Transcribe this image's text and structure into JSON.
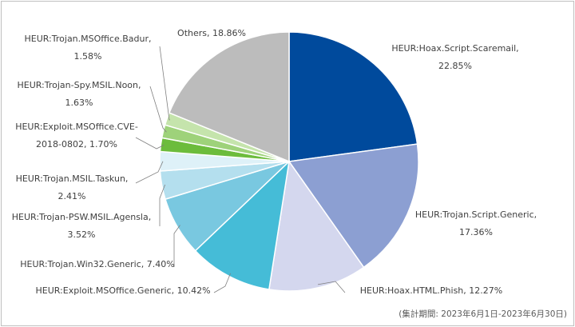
{
  "chart_data": {
    "type": "pie",
    "title": "",
    "slices": [
      {
        "name": "HEUR:Hoax.Script.Scaremail",
        "value": 22.85,
        "label_lines": [
          "HEUR:Hoax.Script.Scaremail,",
          "22.85%"
        ],
        "color": "#004a9c"
      },
      {
        "name": "HEUR:Trojan.Script.Generic",
        "value": 17.36,
        "label_lines": [
          "HEUR:Trojan.Script.Generic,",
          "17.36%"
        ],
        "color": "#8c9fd2"
      },
      {
        "name": "HEUR:Hoax.HTML.Phish",
        "value": 12.27,
        "label_lines": [
          "HEUR:Hoax.HTML.Phish, 12.27%"
        ],
        "color": "#d4d7ee"
      },
      {
        "name": "HEUR:Exploit.MSOffice.Generic",
        "value": 10.42,
        "label_lines": [
          "HEUR:Exploit.MSOffice.Generic, 10.42%"
        ],
        "color": "#45bcd7"
      },
      {
        "name": "HEUR:Trojan.Win32.Generic",
        "value": 7.4,
        "label_lines": [
          "HEUR:Trojan.Win32.Generic,  7.40%"
        ],
        "color": "#79c8e0"
      },
      {
        "name": "HEUR:Trojan-PSW.MSIL.Agensla",
        "value": 3.52,
        "label_lines": [
          "HEUR:Trojan-PSW.MSIL.Agensla,",
          "3.52%"
        ],
        "color": "#b4dfee"
      },
      {
        "name": "HEUR:Trojan.MSIL.Taskun",
        "value": 2.41,
        "label_lines": [
          "HEUR:Trojan.MSIL.Taskun,",
          "2.41%"
        ],
        "color": "#def1f8"
      },
      {
        "name": "HEUR:Exploit.MSOffice.CVE-2018-0802",
        "value": 1.7,
        "label_lines": [
          "HEUR:Exploit.MSOffice.CVE-",
          "2018-0802,  1.70%"
        ],
        "color": "#6cbc3c"
      },
      {
        "name": "HEUR:Trojan-Spy.MSIL.Noon",
        "value": 1.63,
        "label_lines": [
          "HEUR:Trojan-Spy.MSIL.Noon,",
          "1.63%"
        ],
        "color": "#9ed27a"
      },
      {
        "name": "HEUR:Trojan.MSOffice.Badur",
        "value": 1.58,
        "label_lines": [
          "HEUR:Trojan.MSOffice.Badur,",
          "1.58%"
        ],
        "color": "#c5e4ac"
      },
      {
        "name": "Others",
        "value": 18.86,
        "label_lines": [
          "Others, 18.86%"
        ],
        "color": "#bcbcbc"
      }
    ],
    "start_angle": "12 o'clock",
    "direction": "clockwise",
    "legend": "none"
  },
  "footnote": "(集計期間: 2023年6月1日-2023年6月30日)"
}
